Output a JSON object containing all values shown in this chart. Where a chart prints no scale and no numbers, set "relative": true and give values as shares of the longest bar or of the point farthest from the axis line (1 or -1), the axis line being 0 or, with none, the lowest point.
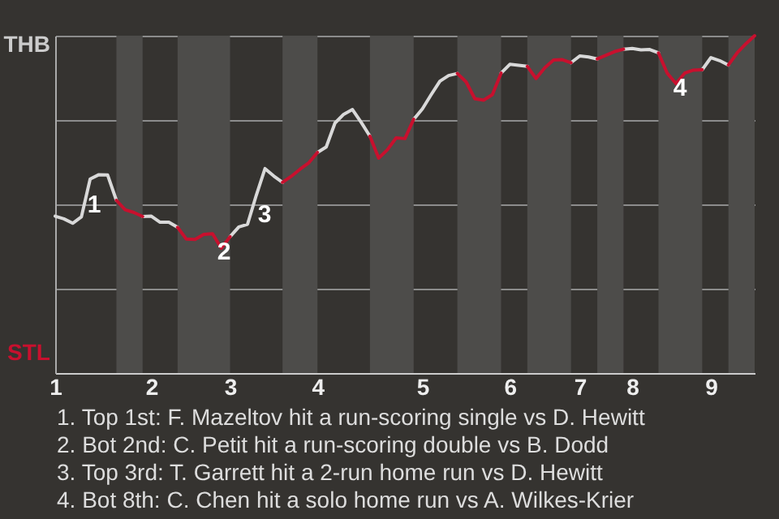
{
  "chart_data": {
    "type": "line",
    "categories": [
      "1",
      null,
      null,
      null,
      null,
      null,
      null,
      null,
      null,
      null,
      null,
      "2",
      null,
      null,
      null,
      null,
      null,
      null,
      null,
      null,
      "3",
      null,
      null,
      null,
      null,
      null,
      null,
      null,
      null,
      null,
      "4",
      null,
      null,
      null,
      null,
      null,
      null,
      null,
      null,
      null,
      null,
      null,
      "5",
      null,
      null,
      null,
      null,
      null,
      null,
      null,
      null,
      null,
      "6",
      null,
      null,
      null,
      null,
      null,
      null,
      null,
      "7",
      null,
      null,
      null,
      null,
      null,
      "8",
      null,
      null,
      null,
      null,
      null,
      null,
      null,
      null,
      "9",
      null,
      null,
      null,
      null,
      null
    ],
    "relative": true,
    "series": [
      {
        "color": "#d9d9d9",
        "values": [
          0.465,
          0.457,
          0.444,
          0.463,
          0.575,
          0.588,
          0.587,
          0.512,
          null,
          null,
          0.464,
          0.465,
          0.447,
          0.447,
          0.432,
          null,
          null,
          null,
          null,
          null,
          0.404,
          0.433,
          0.441,
          0.527,
          0.606,
          0.584,
          0.565,
          null,
          null,
          null,
          0.654,
          0.67,
          0.741,
          0.767,
          0.781,
          0.743,
          0.702,
          null,
          null,
          null,
          null,
          0.752,
          0.783,
          0.825,
          0.865,
          0.882,
          0.888,
          null,
          null,
          null,
          null,
          0.889,
          0.915,
          0.912,
          0.909,
          null,
          null,
          null,
          null,
          0.92,
          0.94,
          0.937,
          0.931,
          null,
          null,
          0.96,
          0.962,
          0.958,
          0.959,
          0.949,
          null,
          null,
          null,
          null,
          0.899,
          0.935,
          0.926,
          0.913,
          null,
          null,
          null
        ]
      },
      {
        "color": "#c8102e",
        "values": [
          null,
          null,
          null,
          null,
          null,
          null,
          null,
          0.512,
          0.484,
          0.476,
          0.464,
          null,
          null,
          null,
          0.432,
          0.397,
          0.396,
          0.411,
          0.413,
          0.37,
          0.404,
          null,
          null,
          null,
          null,
          null,
          0.565,
          0.583,
          0.604,
          0.623,
          0.654,
          null,
          null,
          null,
          null,
          null,
          0.702,
          0.637,
          0.662,
          0.697,
          0.695,
          0.752,
          null,
          null,
          null,
          null,
          0.888,
          0.863,
          0.813,
          0.809,
          0.825,
          0.889,
          null,
          null,
          0.909,
          0.873,
          0.905,
          0.928,
          0.929,
          0.92,
          null,
          null,
          0.931,
          0.942,
          0.953,
          0.96,
          null,
          null,
          null,
          0.949,
          0.889,
          0.858,
          0.889,
          0.898,
          0.899,
          null,
          null,
          0.913,
          0.949,
          0.976,
          1
        ]
      }
    ],
    "grid": "y",
    "annotations": [
      "THB",
      "STL",
      "1",
      "2",
      "3",
      "4",
      "1. Top 1st: F. Mazeltov hit a run-scoring single vs D. Hewitt",
      "2. Bot 2nd: C. Petit hit a run-scoring double vs B. Dodd",
      "3. Top 3rd: T. Garrett hit a 2-run home run vs D. Hewitt",
      "4. Bot 8th: C. Chen hit a solo home run vs A. Wilkes-Krier"
    ]
  }
}
